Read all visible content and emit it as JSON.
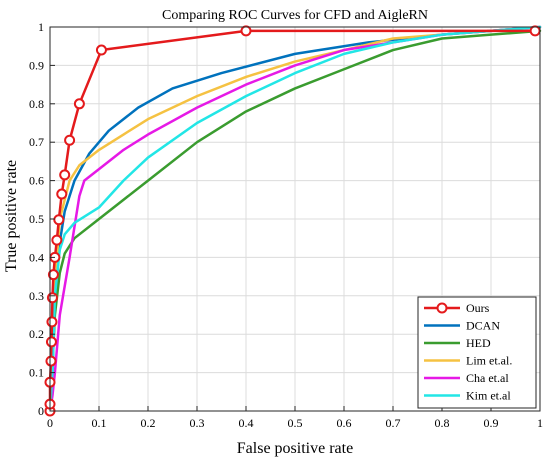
{
  "chart_data": {
    "type": "line",
    "title": "Comparing ROC Curves for CFD and AigleRN",
    "xlabel": "False positive rate",
    "ylabel": "True positive rate",
    "xlim": [
      0,
      1
    ],
    "ylim": [
      0,
      1
    ],
    "xticks": [
      "0",
      "0.1",
      "0.2",
      "0.3",
      "0.4",
      "0.5",
      "0.6",
      "0.7",
      "0.8",
      "0.9",
      "1"
    ],
    "yticks": [
      "0",
      "0.1",
      "0.2",
      "0.3",
      "0.4",
      "0.5",
      "0.6",
      "0.7",
      "0.8",
      "0.9",
      "1"
    ],
    "grid": true,
    "legend_position": "bottom-right",
    "series": [
      {
        "name": "Ours",
        "color": "#e41a1c",
        "marker": "circle",
        "x": [
          0,
          0,
          0,
          0.002,
          0.003,
          0.004,
          0.005,
          0.007,
          0.01,
          0.014,
          0.018,
          0.024,
          0.03,
          0.04,
          0.06,
          0.105,
          0.4,
          0.99
        ],
        "y": [
          0,
          0.018,
          0.075,
          0.13,
          0.18,
          0.232,
          0.295,
          0.355,
          0.4,
          0.445,
          0.498,
          0.565,
          0.615,
          0.705,
          0.8,
          0.94,
          0.99,
          0.99
        ]
      },
      {
        "name": "DCAN",
        "color": "#0072bd",
        "x": [
          0,
          0.005,
          0.01,
          0.02,
          0.03,
          0.05,
          0.08,
          0.12,
          0.18,
          0.25,
          0.35,
          0.5,
          0.65,
          0.8,
          0.9,
          1.0
        ],
        "y": [
          0,
          0.1,
          0.28,
          0.44,
          0.52,
          0.6,
          0.67,
          0.73,
          0.79,
          0.84,
          0.88,
          0.93,
          0.96,
          0.98,
          0.99,
          1.0
        ]
      },
      {
        "name": "HED",
        "color": "#3a9c2f",
        "x": [
          0,
          0.005,
          0.01,
          0.02,
          0.03,
          0.05,
          0.1,
          0.2,
          0.3,
          0.4,
          0.5,
          0.6,
          0.7,
          0.8,
          0.9,
          1.0
        ],
        "y": [
          0,
          0.12,
          0.25,
          0.36,
          0.41,
          0.45,
          0.5,
          0.6,
          0.7,
          0.78,
          0.84,
          0.89,
          0.94,
          0.97,
          0.98,
          0.99
        ]
      },
      {
        "name": "Lim et.al.",
        "color": "#f5c242",
        "x": [
          0,
          0.005,
          0.01,
          0.02,
          0.04,
          0.06,
          0.1,
          0.15,
          0.2,
          0.3,
          0.4,
          0.5,
          0.6,
          0.7,
          0.8,
          0.9,
          1.0
        ],
        "y": [
          0,
          0.12,
          0.33,
          0.5,
          0.6,
          0.64,
          0.68,
          0.72,
          0.76,
          0.82,
          0.87,
          0.91,
          0.94,
          0.97,
          0.98,
          0.99,
          1.0
        ]
      },
      {
        "name": "Cha et.al",
        "color": "#e619e6",
        "x": [
          0,
          0.005,
          0.01,
          0.02,
          0.04,
          0.06,
          0.07,
          0.1,
          0.15,
          0.2,
          0.3,
          0.4,
          0.5,
          0.6,
          0.7,
          0.8,
          0.9,
          1.0
        ],
        "y": [
          0,
          0.04,
          0.1,
          0.25,
          0.4,
          0.56,
          0.6,
          0.63,
          0.68,
          0.72,
          0.79,
          0.85,
          0.9,
          0.94,
          0.96,
          0.98,
          0.99,
          1.0
        ]
      },
      {
        "name": "Kim et.al",
        "color": "#22e6e6",
        "x": [
          0,
          0.005,
          0.01,
          0.02,
          0.03,
          0.05,
          0.1,
          0.15,
          0.2,
          0.3,
          0.4,
          0.5,
          0.6,
          0.7,
          0.8,
          0.9,
          1.0
        ],
        "y": [
          0,
          0.1,
          0.3,
          0.42,
          0.46,
          0.49,
          0.53,
          0.6,
          0.66,
          0.75,
          0.82,
          0.88,
          0.93,
          0.96,
          0.98,
          0.99,
          1.0
        ]
      }
    ]
  }
}
